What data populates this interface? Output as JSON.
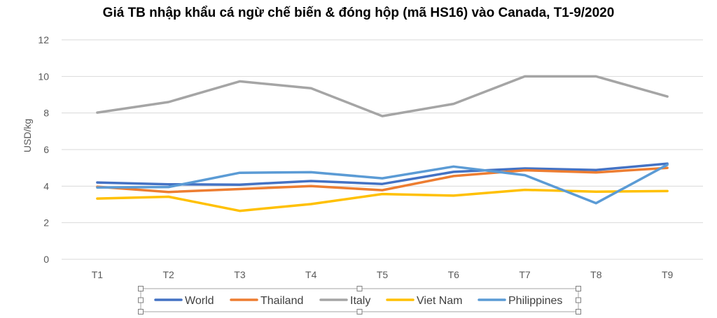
{
  "chart_data": {
    "type": "line",
    "title": "Giá TB nhập khẩu cá ngừ chế biến & đóng hộp (mã HS16) vào Canada, T1-9/2020",
    "xlabel": "",
    "ylabel": "USD/kg",
    "categories": [
      "T1",
      "T2",
      "T3",
      "T4",
      "T5",
      "T6",
      "T7",
      "T8",
      "T9"
    ],
    "ylim": [
      0,
      12
    ],
    "yticks": [
      0,
      2,
      4,
      6,
      8,
      10,
      12
    ],
    "grid": true,
    "legend": "bottom",
    "series": [
      {
        "name": "World",
        "color": "#4472C4",
        "values": [
          4.2,
          4.1,
          4.08,
          4.28,
          4.12,
          4.78,
          4.97,
          4.88,
          5.23
        ]
      },
      {
        "name": "Thailand",
        "color": "#ED7D31",
        "values": [
          3.97,
          3.68,
          3.84,
          4.0,
          3.78,
          4.55,
          4.87,
          4.75,
          5.0
        ]
      },
      {
        "name": "Italy",
        "color": "#A5A5A5",
        "values": [
          8.02,
          8.6,
          9.73,
          9.35,
          7.83,
          8.5,
          10.0,
          10.0,
          8.9
        ]
      },
      {
        "name": "Viet Nam",
        "color": "#FFC000",
        "values": [
          3.32,
          3.42,
          2.65,
          3.02,
          3.57,
          3.48,
          3.8,
          3.7,
          3.73
        ]
      },
      {
        "name": "Philippines",
        "color": "#5B9BD5",
        "values": [
          3.93,
          3.95,
          4.73,
          4.76,
          4.43,
          5.07,
          4.6,
          3.07,
          5.17
        ]
      }
    ]
  }
}
